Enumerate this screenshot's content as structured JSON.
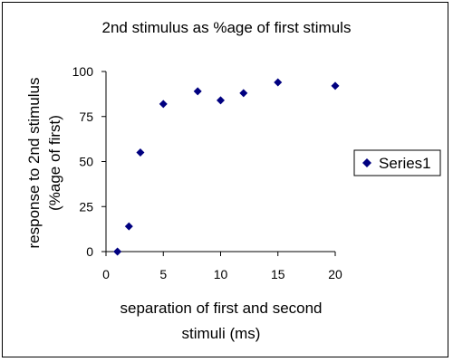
{
  "chart_data": {
    "type": "scatter",
    "title": "2nd stimulus as %age of first stimuls",
    "xlabel_lines": [
      "separation of first and second",
      "stimuli (ms)"
    ],
    "ylabel_lines": [
      "response to 2nd stimulus",
      "(%age of first)"
    ],
    "xlim": [
      0,
      20
    ],
    "ylim": [
      0,
      100
    ],
    "x_ticks": [
      0,
      5,
      10,
      15,
      20
    ],
    "y_ticks": [
      0,
      25,
      50,
      75,
      100
    ],
    "grid": false,
    "legend_position": "right",
    "series": [
      {
        "name": "Series1",
        "color": "#000080",
        "marker": "diamond",
        "x": [
          1,
          2,
          3,
          5,
          8,
          10,
          12,
          15,
          20
        ],
        "y": [
          0,
          14,
          55,
          82,
          89,
          84,
          88,
          94,
          92
        ]
      }
    ]
  }
}
